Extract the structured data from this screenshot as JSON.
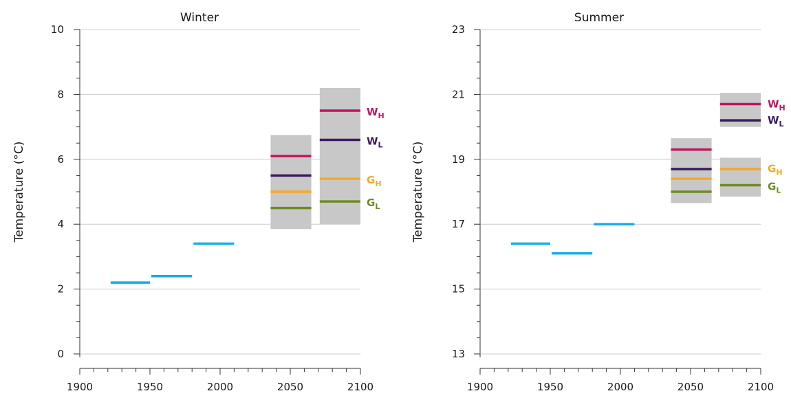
{
  "chart_data": [
    {
      "type": "range-bar",
      "title": "Winter",
      "ylabel": "Temperature (°C)",
      "xlim": [
        1900,
        2100
      ],
      "ylim": [
        0,
        10
      ],
      "xticks": [
        1900,
        1950,
        2000,
        2050,
        2100
      ],
      "yticks": [
        0,
        2,
        4,
        6,
        8,
        10
      ],
      "observed": [
        {
          "x": [
            1922,
            1950
          ],
          "value": 2.2
        },
        {
          "x": [
            1951,
            1980
          ],
          "value": 2.4
        },
        {
          "x": [
            1981,
            2010
          ],
          "value": 3.4
        }
      ],
      "projections": [
        {
          "x": [
            2036,
            2065
          ],
          "range": [
            3.85,
            6.75
          ],
          "scenarios": [
            {
              "key": "WH",
              "value": 6.1
            },
            {
              "key": "WL",
              "value": 5.5
            },
            {
              "key": "GH",
              "value": 5.0
            },
            {
              "key": "GL",
              "value": 4.5
            }
          ]
        },
        {
          "x": [
            2071,
            2100
          ],
          "range": [
            4.0,
            8.2
          ],
          "scenarios": [
            {
              "key": "WH",
              "value": 7.5
            },
            {
              "key": "WL",
              "value": 6.6
            },
            {
              "key": "GH",
              "value": 5.4
            },
            {
              "key": "GL",
              "value": 4.7
            }
          ]
        }
      ],
      "labels": [
        {
          "key": "WH",
          "at": 7.35
        },
        {
          "key": "WL",
          "at": 6.45
        },
        {
          "key": "GH",
          "at": 5.25
        },
        {
          "key": "GL",
          "at": 4.55
        }
      ],
      "grid": true
    },
    {
      "type": "range-bar",
      "title": "Summer",
      "ylabel": "Temperature (°C)",
      "xlim": [
        1900,
        2100
      ],
      "ylim": [
        13,
        23
      ],
      "xticks": [
        1900,
        1950,
        2000,
        2050,
        2100
      ],
      "yticks": [
        13,
        15,
        17,
        19,
        21,
        23
      ],
      "observed": [
        {
          "x": [
            1922,
            1950
          ],
          "value": 16.4
        },
        {
          "x": [
            1951,
            1980
          ],
          "value": 16.1
        },
        {
          "x": [
            1981,
            2010
          ],
          "value": 17.0
        }
      ],
      "projections": [
        {
          "x": [
            2036,
            2065
          ],
          "range": [
            17.65,
            19.65
          ],
          "scenarios": [
            {
              "key": "WH",
              "value": 19.3
            },
            {
              "key": "WL",
              "value": 18.7
            },
            {
              "key": "GH",
              "value": 18.4
            },
            {
              "key": "GL",
              "value": 18.0
            }
          ]
        },
        {
          "x": [
            2071,
            2100
          ],
          "range": [
            20.0,
            21.05
          ],
          "scenarios": [
            {
              "key": "WH",
              "value": 20.7
            },
            {
              "key": "WL",
              "value": 20.2
            }
          ]
        },
        {
          "x": [
            2071,
            2100
          ],
          "range": [
            17.85,
            19.05
          ],
          "scenarios": [
            {
              "key": "GH",
              "value": 18.7
            },
            {
              "key": "GL",
              "value": 18.2
            }
          ]
        }
      ],
      "labels": [
        {
          "key": "WH",
          "at": 20.6
        },
        {
          "key": "WL",
          "at": 20.1
        },
        {
          "key": "GH",
          "at": 18.6
        },
        {
          "key": "GL",
          "at": 18.05
        }
      ],
      "grid": true
    }
  ],
  "scenarios": {
    "WH": {
      "main": "W",
      "sub": "H",
      "color": "#c0135e"
    },
    "WL": {
      "main": "W",
      "sub": "L",
      "color": "#3b1a5c"
    },
    "GH": {
      "main": "G",
      "sub": "H",
      "color": "#f7a823"
    },
    "GL": {
      "main": "G",
      "sub": "L",
      "color": "#6e8a22"
    }
  },
  "colors": {
    "observed": "#13aee8",
    "range": "#c8c8c8",
    "grid": "#cccccc",
    "axis": "#333333"
  }
}
